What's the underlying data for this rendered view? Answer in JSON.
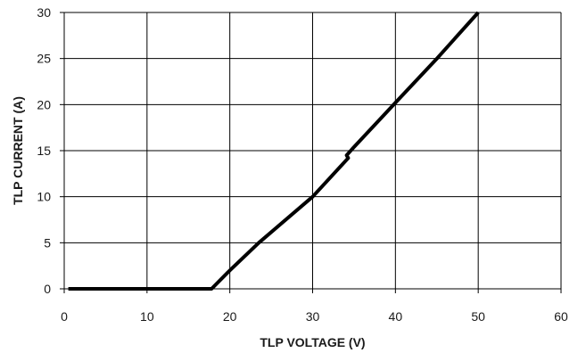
{
  "chart_data": {
    "type": "line",
    "title": "",
    "xlabel": "TLP VOLTAGE (V)",
    "ylabel": "TLP CURRENT  (A)",
    "xlim": [
      0,
      60
    ],
    "ylim": [
      0,
      30
    ],
    "x_ticks": [
      0,
      10,
      20,
      30,
      40,
      50,
      60
    ],
    "y_ticks": [
      0,
      5,
      10,
      15,
      20,
      25,
      30
    ],
    "grid": true,
    "legend": "none",
    "series": [
      {
        "color": "#000000",
        "points": [
          {
            "x": 0.5,
            "y": 0
          },
          {
            "x": 17.8,
            "y": 0
          },
          {
            "x": 20,
            "y": 2
          },
          {
            "x": 23.5,
            "y": 5
          },
          {
            "x": 30,
            "y": 10
          },
          {
            "x": 34.3,
            "y": 14.2
          },
          {
            "x": 34.1,
            "y": 14.5
          },
          {
            "x": 34.8,
            "y": 15.2
          },
          {
            "x": 40,
            "y": 20.2
          },
          {
            "x": 45,
            "y": 25
          },
          {
            "x": 50,
            "y": 30
          }
        ]
      }
    ]
  }
}
